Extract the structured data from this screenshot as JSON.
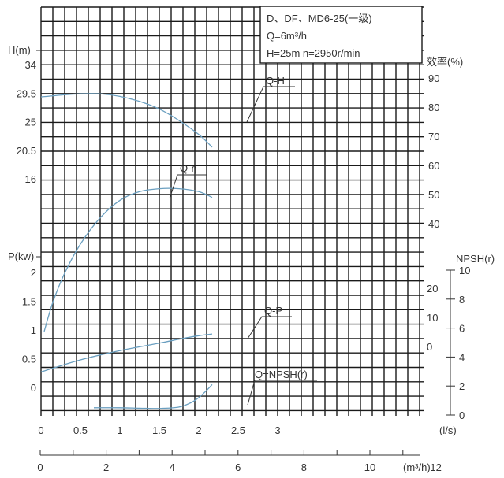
{
  "title_box": {
    "line1": "D、DF、MD6-25(一级)",
    "line2": "Q=6m³/h",
    "line3": "H=25m   n=2950r/min"
  },
  "axes": {
    "h_label": "H(m)",
    "h_ticks": [
      "34",
      "29.5",
      "25",
      "20.5",
      "16"
    ],
    "eff_label": "效率(%)",
    "eff_ticks": [
      "90",
      "80",
      "70",
      "60",
      "50",
      "40"
    ],
    "p_label": "P(kw)",
    "p_ticks": [
      "2",
      "1.5",
      "1",
      "0.5",
      "0"
    ],
    "npsh_label": "NPSH(r)",
    "npsh_ticks": [
      "10",
      "8",
      "6",
      "4",
      "2",
      "0"
    ],
    "eff_low_ticks": [
      "20",
      "10",
      "0"
    ],
    "q_ls_label": "(l/s)",
    "q_ls_ticks": [
      "0",
      "0.5",
      "1",
      "1.5",
      "2",
      "2.5",
      "3"
    ],
    "q_m3_label": "(m³/h)",
    "q_m3_ticks": [
      "0",
      "2",
      "4",
      "6",
      "8",
      "10",
      "12"
    ]
  },
  "chart_data": {
    "type": "line",
    "title": "D、DF、MD6-25(一级)",
    "x_unit": "Q (l/s)",
    "xlim": [
      0,
      3.25
    ],
    "series": [
      {
        "name": "Q-H",
        "unit": "m",
        "x": [
          0,
          0.25,
          0.5,
          0.75,
          1.0,
          1.25,
          1.5,
          1.75,
          2.0,
          2.17
        ],
        "values": [
          28.9,
          29.2,
          29.4,
          29.4,
          29.0,
          28.2,
          27.0,
          25.2,
          23.0,
          21.0
        ]
      },
      {
        "name": "Q-η",
        "unit": "%",
        "x": [
          0.04,
          0.15,
          0.3,
          0.5,
          0.75,
          1.0,
          1.25,
          1.5,
          1.75,
          2.0,
          2.17
        ],
        "values": [
          3,
          13,
          23,
          33,
          42,
          48,
          51,
          52,
          52,
          51,
          49
        ]
      },
      {
        "name": "Q-P",
        "unit": "kW",
        "x": [
          0,
          0.5,
          1.0,
          1.5,
          1.75,
          2.0,
          2.17
        ],
        "values": [
          0.27,
          0.48,
          0.64,
          0.77,
          0.84,
          0.9,
          0.93
        ]
      },
      {
        "name": "Q=NPSH(r)",
        "unit": "m",
        "x": [
          0.67,
          1.0,
          1.25,
          1.5,
          1.75,
          1.9,
          2.0,
          2.1,
          2.17
        ],
        "values": [
          0.5,
          0.5,
          0.47,
          0.45,
          0.55,
          0.85,
          1.2,
          1.7,
          2.1
        ]
      }
    ],
    "grid": true
  }
}
